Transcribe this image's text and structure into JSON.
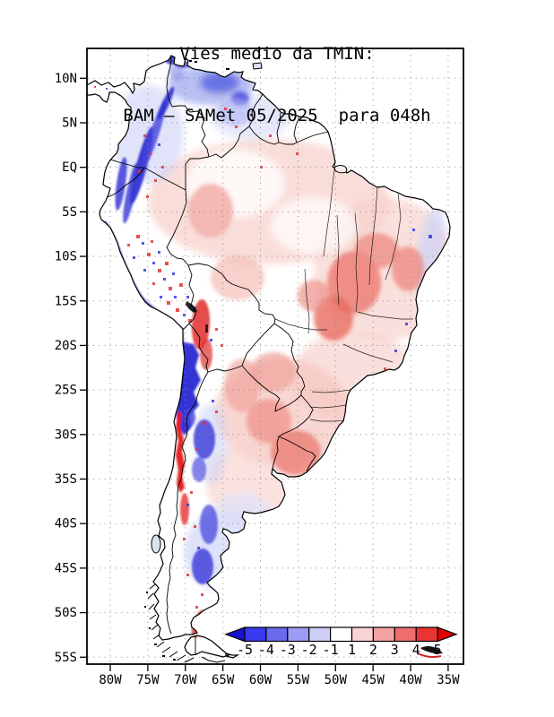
{
  "title": {
    "line1": "Vies medio da TMIN:",
    "line2": "BAM – SAMet 05/2025  para 048h"
  },
  "axes": {
    "lat_ticks": [
      "10N",
      "5N",
      "EQ",
      "5S",
      "10S",
      "15S",
      "20S",
      "25S",
      "30S",
      "35S",
      "40S",
      "45S",
      "50S",
      "55S"
    ],
    "lon_ticks": [
      "80W",
      "75W",
      "70W",
      "65W",
      "60W",
      "55W",
      "50W",
      "45W",
      "40W",
      "35W"
    ]
  },
  "colorbar": {
    "labels": [
      "-5",
      "-4",
      "-3",
      "-2",
      "-1",
      "1",
      "2",
      "3",
      "4",
      "5"
    ],
    "colors": [
      "#1414cd",
      "#3a3af0",
      "#6b6bf0",
      "#9c9cf4",
      "#cfcffa",
      "#ffffff",
      "#fad4d4",
      "#f4a2a2",
      "#ef6f6f",
      "#e93434",
      "#e00000"
    ]
  },
  "chart_data": {
    "type": "heatmap",
    "subtype": "filled_contour_map",
    "title": "Vies medio da TMIN:",
    "subtitle": "BAM – SAMet 05/2025  para 048h",
    "variable": "Mean bias of minimum temperature (TMIN)",
    "model": "BAM",
    "reference": "SAMet",
    "period": "05/2025",
    "lead_time": "048h",
    "region": "South America",
    "lon_axis": {
      "ticks": [
        "80W",
        "75W",
        "70W",
        "65W",
        "60W",
        "55W",
        "50W",
        "45W",
        "40W",
        "35W"
      ],
      "range_deg_east": [
        -83,
        -33
      ]
    },
    "lat_axis": {
      "ticks": [
        "10N",
        "5N",
        "EQ",
        "5S",
        "10S",
        "15S",
        "20S",
        "25S",
        "30S",
        "35S",
        "40S",
        "45S",
        "50S",
        "55S"
      ],
      "range_deg_north": [
        13.3,
        -55.8
      ]
    },
    "levels": [
      -5,
      -4,
      -3,
      -2,
      -1,
      1,
      2,
      3,
      4,
      5
    ],
    "palette": [
      "#1414cd",
      "#3a3af0",
      "#6b6bf0",
      "#9c9cf4",
      "#cfcffa",
      "#ffffff",
      "#fad4d4",
      "#f4a2a2",
      "#ef6f6f",
      "#e93434",
      "#e00000"
    ],
    "grid": "dotted 5-degree graticule",
    "legend_position": "bottom-right inside frame",
    "features": [
      {
        "area": "Peru coastal strip and Andes into northern Chile (5S-25S)",
        "bias": "strong negative, -4 to below -5"
      },
      {
        "area": "Central Chile coast/Andes (29S-38S)",
        "bias": "strong positive, +4 to above +5"
      },
      {
        "area": "Altiplano (Bolivia/Chile border ~17S-22S)",
        "bias": "local positive +3 to +5 surrounded by negative"
      },
      {
        "area": "Colombian Andes and northern Venezuela",
        "bias": "negative, -1 to -4"
      },
      {
        "area": "Central and eastern Brazil (Tocantins/Bahia/Minas)",
        "bias": "positive, +1 to +3"
      },
      {
        "area": "Paraguay, NE Argentina, Uruguay, S Brazil",
        "bias": "positive, +1 to +3"
      },
      {
        "area": "Western Amazon basin",
        "bias": "near zero to weak positive"
      },
      {
        "area": "NE Brazil coast",
        "bias": "weak negative, -1 to -2"
      },
      {
        "area": "Patagonia interior",
        "bias": "weak negative, -1 to -2"
      },
      {
        "area": "Tierra del Fuego Andes",
        "bias": "local positive +3 to +5"
      }
    ]
  }
}
